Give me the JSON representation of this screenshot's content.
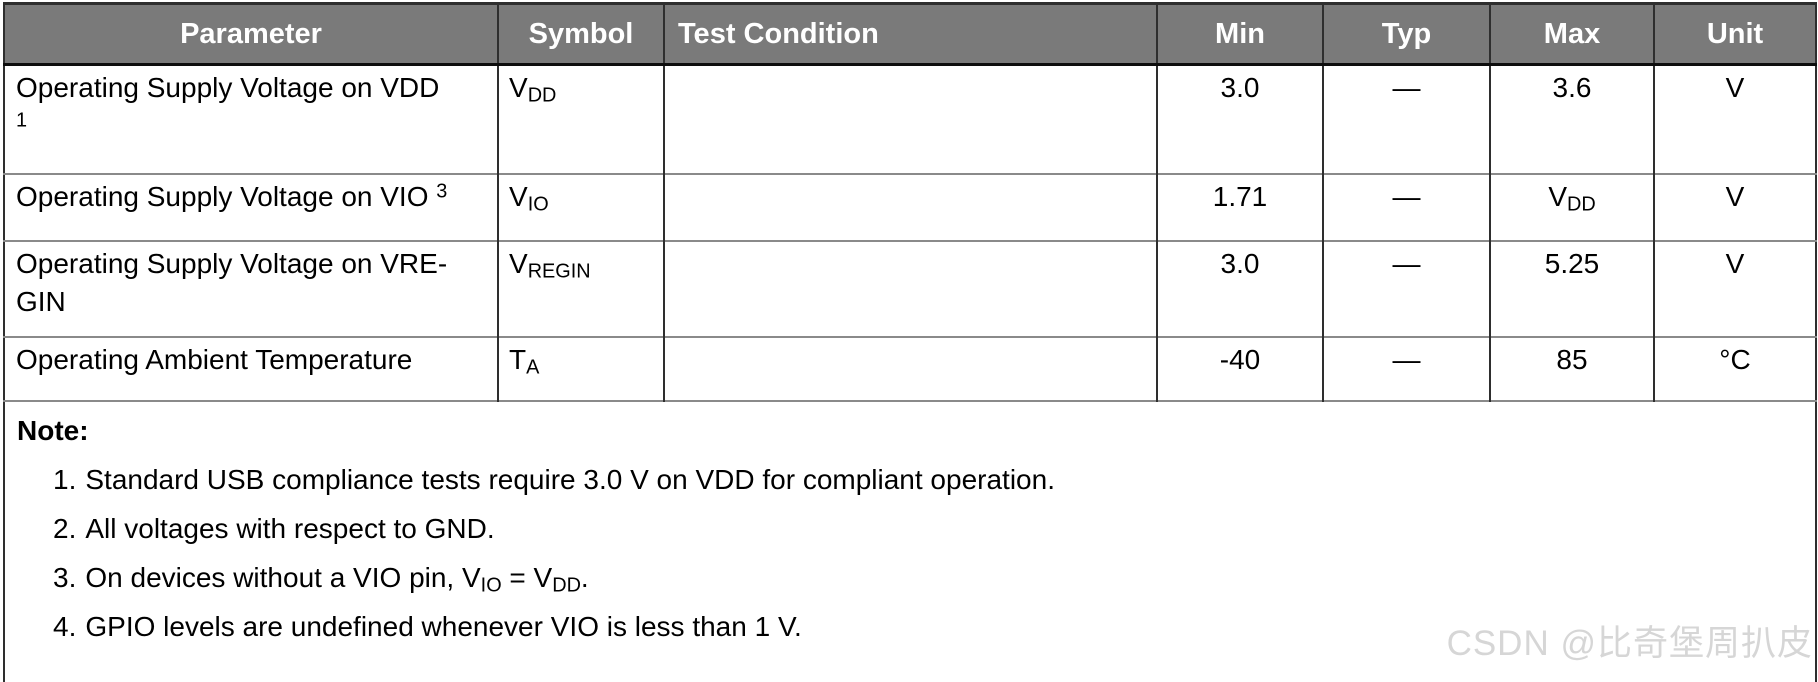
{
  "colors": {
    "header_bg": "#7a7a7a",
    "header_text": "#ffffff",
    "grid_dark": "#2e2e2e",
    "grid_light": "#8a8a8a",
    "watermark": "#d6d6d6"
  },
  "table": {
    "headers": [
      "Parameter",
      "Symbol",
      "Test Condition",
      "Min",
      "Typ",
      "Max",
      "Unit"
    ],
    "rows": [
      {
        "parameter_lines": [
          [
            {
              "t": "Operating Supply Voltage on VDD"
            }
          ],
          [
            {
              "t": "1",
              "sup": true
            }
          ]
        ],
        "symbol": [
          {
            "t": "V"
          },
          {
            "t": "DD",
            "sub": true
          }
        ],
        "test_condition": [],
        "min": [
          {
            "t": "3.0"
          }
        ],
        "typ": [
          {
            "t": "—"
          }
        ],
        "max": [
          {
            "t": "3.6"
          }
        ],
        "unit": [
          {
            "t": "V"
          }
        ]
      },
      {
        "parameter_lines": [
          [
            {
              "t": "Operating Supply Voltage on VIO "
            },
            {
              "t": "3",
              "sup": true
            }
          ]
        ],
        "symbol": [
          {
            "t": "V"
          },
          {
            "t": "IO",
            "sub": true
          }
        ],
        "test_condition": [],
        "min": [
          {
            "t": "1.71"
          }
        ],
        "typ": [
          {
            "t": "—"
          }
        ],
        "max": [
          {
            "t": "V"
          },
          {
            "t": "DD",
            "sub": true
          }
        ],
        "unit": [
          {
            "t": "V"
          }
        ]
      },
      {
        "parameter_lines": [
          [
            {
              "t": "Operating Supply Voltage on VRE-"
            }
          ],
          [
            {
              "t": "GIN"
            }
          ]
        ],
        "symbol": [
          {
            "t": "V"
          },
          {
            "t": "REGIN",
            "sub": true
          }
        ],
        "test_condition": [],
        "min": [
          {
            "t": "3.0"
          }
        ],
        "typ": [
          {
            "t": "—"
          }
        ],
        "max": [
          {
            "t": "5.25"
          }
        ],
        "unit": [
          {
            "t": "V"
          }
        ]
      },
      {
        "parameter_lines": [
          [
            {
              "t": "Operating Ambient Temperature"
            }
          ]
        ],
        "symbol": [
          {
            "t": "T"
          },
          {
            "t": "A",
            "sub": true
          }
        ],
        "test_condition": [],
        "min": [
          {
            "t": "-40"
          }
        ],
        "typ": [
          {
            "t": "—"
          }
        ],
        "max": [
          {
            "t": "85"
          }
        ],
        "unit": [
          {
            "t": "°C"
          }
        ]
      }
    ]
  },
  "notes": {
    "title": "Note:",
    "items": [
      {
        "number": "1.",
        "segments": [
          {
            "t": "Standard USB compliance tests require 3.0 V on VDD for compliant operation."
          }
        ]
      },
      {
        "number": "2.",
        "segments": [
          {
            "t": "All voltages with respect to GND."
          }
        ]
      },
      {
        "number": "3.",
        "segments": [
          {
            "t": "On devices without a VIO pin, V"
          },
          {
            "t": "IO",
            "sub": true
          },
          {
            "t": " = V"
          },
          {
            "t": "DD",
            "sub": true
          },
          {
            "t": "."
          }
        ]
      },
      {
        "number": "4.",
        "segments": [
          {
            "t": "GPIO levels are undefined whenever VIO is less than 1 V."
          }
        ]
      }
    ]
  },
  "watermark": {
    "text": "CSDN @比奇堡周扒皮"
  }
}
